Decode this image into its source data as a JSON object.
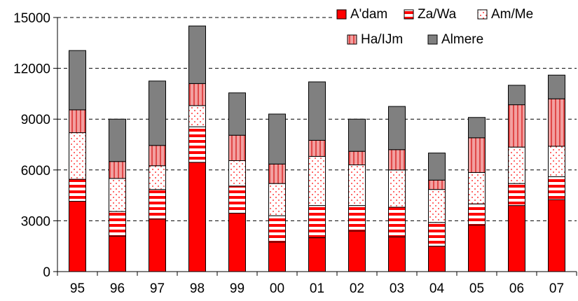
{
  "chart_data": {
    "type": "bar",
    "stacked": true,
    "categories": [
      "95",
      "96",
      "97",
      "98",
      "99",
      "00",
      "01",
      "02",
      "03",
      "04",
      "05",
      "06",
      "07"
    ],
    "series": [
      {
        "name": "A'dam",
        "values": [
          4150,
          2100,
          3100,
          6450,
          3450,
          1750,
          2000,
          2400,
          2050,
          1500,
          2750,
          3900,
          4250
        ]
      },
      {
        "name": "Za/Wa",
        "values": [
          1300,
          1450,
          1750,
          2100,
          1600,
          1550,
          1900,
          1500,
          1750,
          1400,
          1250,
          1300,
          1350
        ]
      },
      {
        "name": "Am/Me",
        "values": [
          2750,
          1950,
          1400,
          1250,
          1500,
          1900,
          2900,
          2400,
          2200,
          1950,
          1850,
          2150,
          1800
        ]
      },
      {
        "name": "Ha/IJm",
        "values": [
          1350,
          1000,
          1200,
          1300,
          1500,
          1150,
          950,
          800,
          1200,
          550,
          2050,
          2500,
          2800
        ]
      },
      {
        "name": "Almere",
        "values": [
          3500,
          2500,
          3800,
          3400,
          2500,
          2950,
          3450,
          1900,
          2550,
          1600,
          1200,
          1150,
          1400
        ]
      }
    ],
    "yticks": [
      "0",
      "3000",
      "6000",
      "9000",
      "12000",
      "15000"
    ],
    "ylim": [
      0,
      15000
    ],
    "grid": "horizontal-dashed",
    "legend": "top-right",
    "colors": {
      "A'dam": "#ff0000",
      "Za/Wa": "#ff0000",
      "Am/Me": "#ffffff",
      "Ha/IJm": "#f2a0a0",
      "Almere": "#808080"
    },
    "patterns": {
      "A'dam": "solid",
      "Za/Wa": "horizontal-stripes",
      "Am/Me": "dots",
      "Ha/IJm": "vertical-stripes",
      "Almere": "solid"
    }
  }
}
